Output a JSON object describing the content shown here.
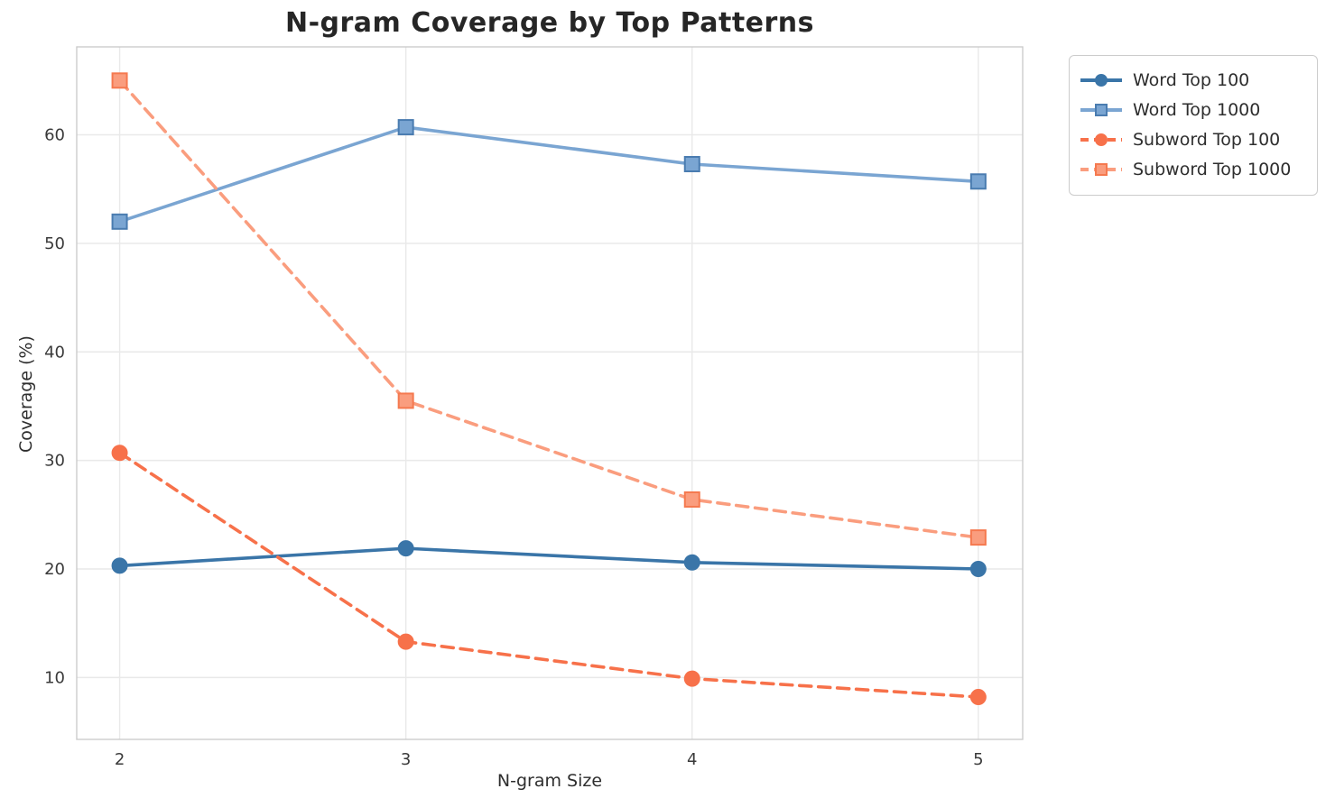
{
  "chart_data": {
    "type": "line",
    "title": "N-gram Coverage by Top Patterns",
    "xlabel": "N-gram Size",
    "ylabel": "Coverage (%)",
    "x": [
      2,
      3,
      4,
      5
    ],
    "xticks": [
      2,
      3,
      4,
      5
    ],
    "yticks": [
      10,
      20,
      30,
      40,
      50,
      60
    ],
    "xlim": [
      1.85,
      5.155
    ],
    "ylim": [
      4.3,
      68.1
    ],
    "grid": true,
    "legend_position": "outside upper right",
    "colors": {
      "grid": "#e9e9e9",
      "spine": "#cccccc",
      "tick_text": "#3a3a3a"
    },
    "series": [
      {
        "name": "Word Top 100",
        "values": [
          20.3,
          21.9,
          20.6,
          20.0
        ],
        "color": "#3a75a8",
        "marker_edge": "#3a75a8",
        "style": "solid",
        "marker": "circle"
      },
      {
        "name": "Word Top 1000",
        "values": [
          52.0,
          60.7,
          57.3,
          55.7
        ],
        "color": "#7aa5d2",
        "marker_edge": "#4a7cb0",
        "style": "solid",
        "marker": "square"
      },
      {
        "name": "Subword Top 100",
        "values": [
          30.7,
          13.3,
          9.9,
          8.2
        ],
        "color": "#f7714a",
        "marker_edge": "#f7714a",
        "style": "dashed",
        "marker": "circle"
      },
      {
        "name": "Subword Top 1000",
        "values": [
          65.0,
          35.5,
          26.4,
          22.9
        ],
        "color": "#fa9d7e",
        "marker_edge": "#f5794f",
        "style": "dashed",
        "marker": "square"
      }
    ]
  }
}
